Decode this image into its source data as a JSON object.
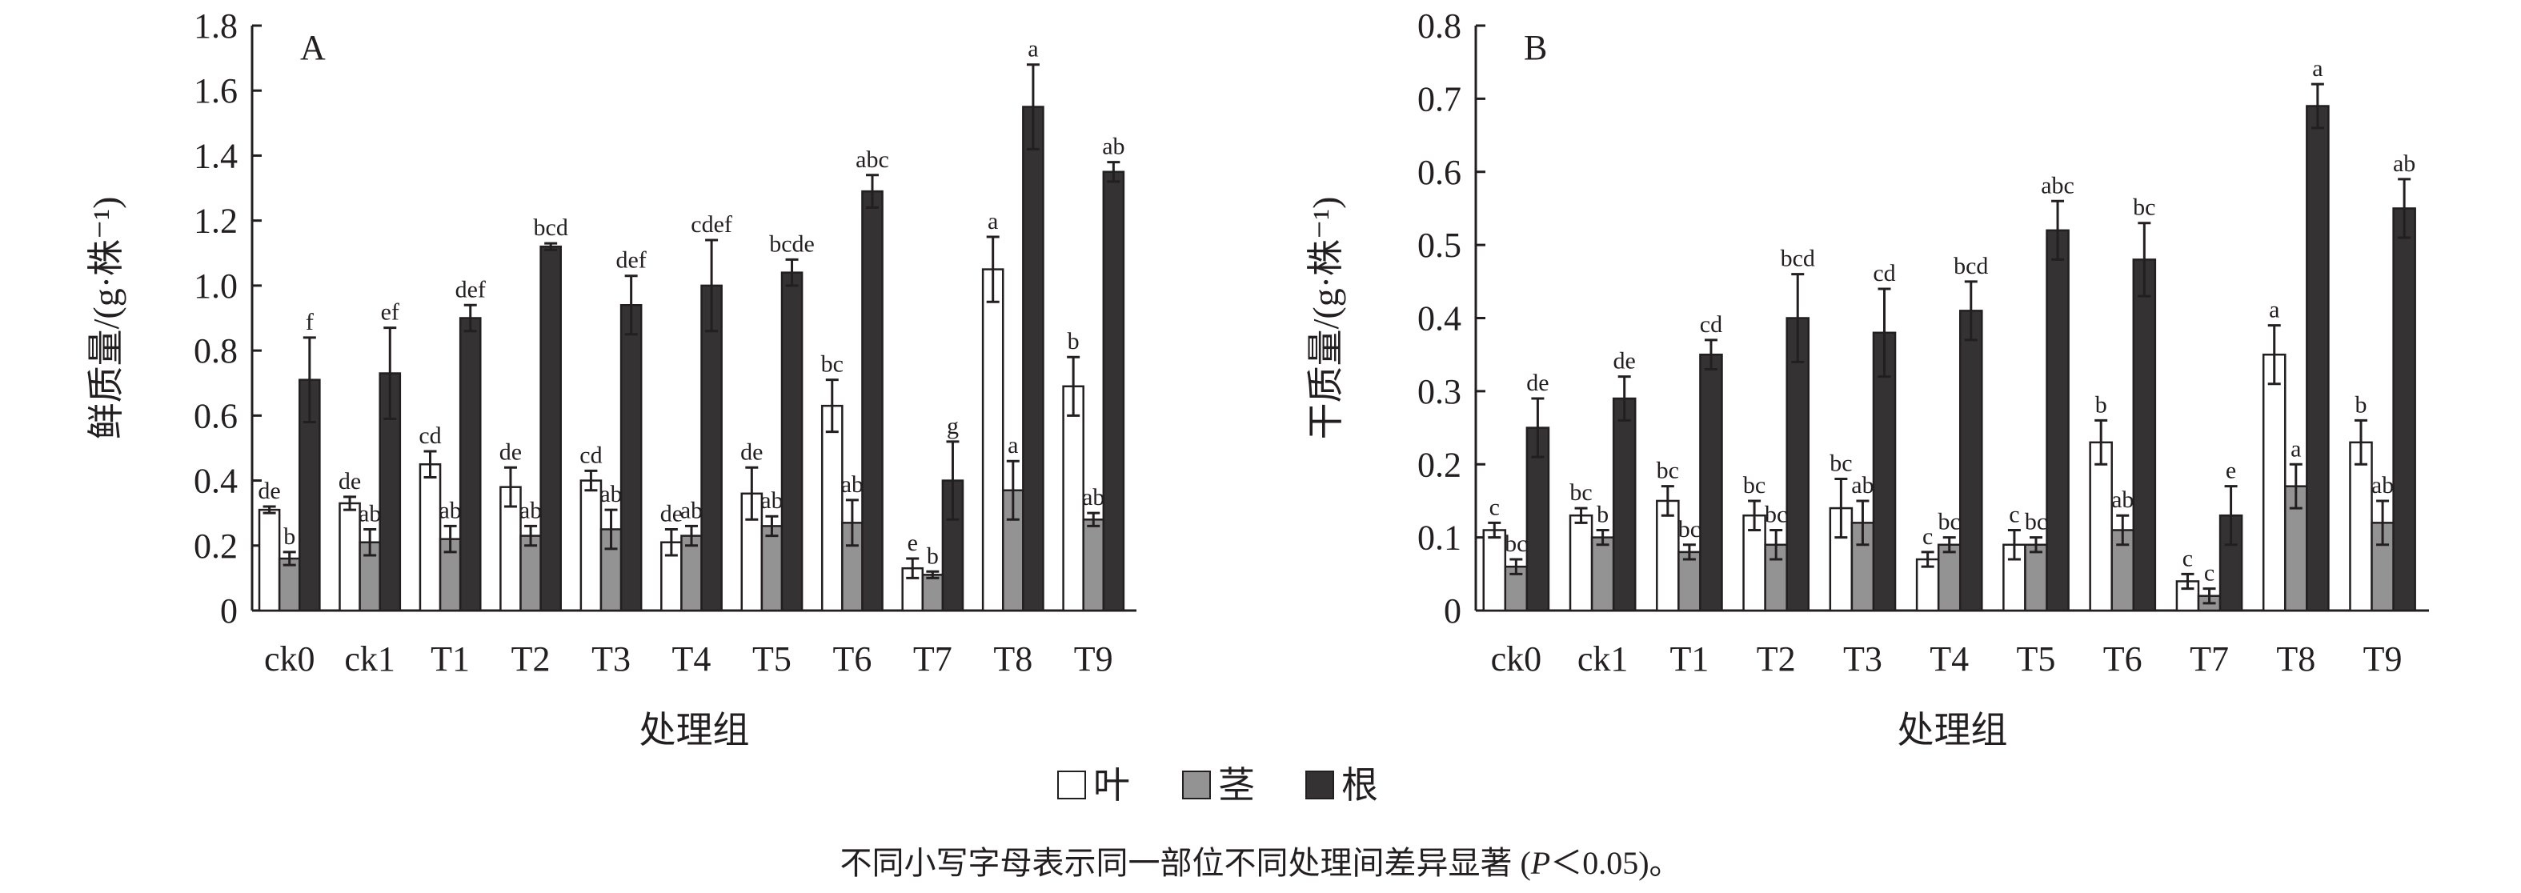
{
  "chart_data": [
    {
      "type": "bar",
      "panel_label": "A",
      "ylabel": "鲜质量/(g·株⁻¹)",
      "xlabel": "处理组",
      "ylim": [
        0,
        1.8
      ],
      "yticks": [
        "0",
        "0.2",
        "0.4",
        "0.6",
        "0.8",
        "1.0",
        "1.2",
        "1.4",
        "1.6",
        "1.8"
      ],
      "categories": [
        "ck0",
        "ck1",
        "T1",
        "T2",
        "T3",
        "T4",
        "T5",
        "T6",
        "T7",
        "T8",
        "T9"
      ],
      "series": [
        {
          "name": "叶",
          "values": [
            0.31,
            0.33,
            0.45,
            0.38,
            0.4,
            0.21,
            0.36,
            0.63,
            0.13,
            1.05,
            0.69
          ],
          "errors": [
            0.01,
            0.02,
            0.04,
            0.06,
            0.03,
            0.04,
            0.08,
            0.08,
            0.03,
            0.1,
            0.09
          ],
          "letters": [
            "de",
            "de",
            "cd",
            "de",
            "cd",
            "de",
            "de",
            "bc",
            "e",
            "a",
            "b"
          ]
        },
        {
          "name": "茎",
          "values": [
            0.16,
            0.21,
            0.22,
            0.23,
            0.25,
            0.23,
            0.26,
            0.27,
            0.11,
            0.37,
            0.28
          ],
          "errors": [
            0.02,
            0.04,
            0.04,
            0.03,
            0.06,
            0.03,
            0.03,
            0.07,
            0.01,
            0.09,
            0.02
          ],
          "letters": [
            "b",
            "ab",
            "ab",
            "ab",
            "ab",
            "ab",
            "ab",
            "ab",
            "b",
            "a",
            "ab"
          ]
        },
        {
          "name": "根",
          "values": [
            0.71,
            0.73,
            0.9,
            1.12,
            0.94,
            1.0,
            1.04,
            1.29,
            0.4,
            1.55,
            1.35
          ],
          "errors": [
            0.13,
            0.14,
            0.04,
            0.01,
            0.09,
            0.14,
            0.04,
            0.05,
            0.12,
            0.13,
            0.03
          ],
          "letters": [
            "f",
            "ef",
            "def",
            "bcd",
            "def",
            "cdef",
            "bcde",
            "abc",
            "g",
            "a",
            "ab"
          ]
        }
      ]
    },
    {
      "type": "bar",
      "panel_label": "B",
      "ylabel": "干质量/(g·株⁻¹)",
      "xlabel": "处理组",
      "ylim": [
        0,
        0.8
      ],
      "yticks": [
        "0",
        "0.1",
        "0.2",
        "0.3",
        "0.4",
        "0.5",
        "0.6",
        "0.7",
        "0.8"
      ],
      "categories": [
        "ck0",
        "ck1",
        "T1",
        "T2",
        "T3",
        "T4",
        "T5",
        "T6",
        "T7",
        "T8",
        "T9"
      ],
      "series": [
        {
          "name": "叶",
          "values": [
            0.11,
            0.13,
            0.15,
            0.13,
            0.14,
            0.07,
            0.09,
            0.23,
            0.04,
            0.35,
            0.23
          ],
          "errors": [
            0.01,
            0.01,
            0.02,
            0.02,
            0.04,
            0.01,
            0.02,
            0.03,
            0.01,
            0.04,
            0.03
          ],
          "letters": [
            "c",
            "bc",
            "bc",
            "bc",
            "bc",
            "c",
            "c",
            "b",
            "c",
            "a",
            "b"
          ]
        },
        {
          "name": "茎",
          "values": [
            0.06,
            0.1,
            0.08,
            0.09,
            0.12,
            0.09,
            0.09,
            0.11,
            0.02,
            0.17,
            0.12
          ],
          "errors": [
            0.01,
            0.01,
            0.01,
            0.02,
            0.03,
            0.01,
            0.01,
            0.02,
            0.01,
            0.03,
            0.03
          ],
          "letters": [
            "bc",
            "b",
            "bc",
            "bc",
            "ab",
            "bc",
            "bc",
            "ab",
            "c",
            "a",
            "ab"
          ]
        },
        {
          "name": "根",
          "values": [
            0.25,
            0.29,
            0.35,
            0.4,
            0.38,
            0.41,
            0.52,
            0.48,
            0.13,
            0.69,
            0.55
          ],
          "errors": [
            0.04,
            0.03,
            0.02,
            0.06,
            0.06,
            0.04,
            0.04,
            0.05,
            0.04,
            0.03,
            0.04
          ],
          "letters": [
            "de",
            "de",
            "cd",
            "bcd",
            "cd",
            "bcd",
            "abc",
            "bc",
            "e",
            "a",
            "ab"
          ]
        }
      ]
    }
  ],
  "legend": {
    "items": [
      {
        "label": "叶",
        "color": "#ffffff"
      },
      {
        "label": "茎",
        "color": "#939393"
      },
      {
        "label": "根",
        "color": "#353233"
      }
    ]
  },
  "footnote": {
    "before": "不同小写字母表示同一部位不同处理间差异显著 (",
    "p": "P",
    "after": "＜0.05)。"
  }
}
